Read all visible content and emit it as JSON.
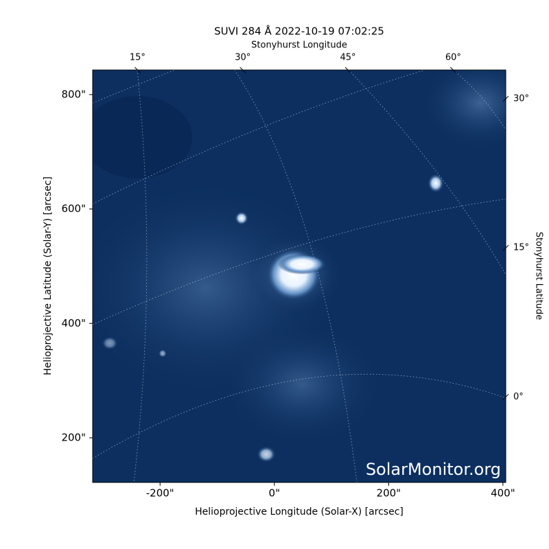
{
  "chart_data": {
    "type": "image",
    "title": "SUVI 284 Å 2022-10-19 07:02:25",
    "xlabel": "Helioprojective Longitude (Solar-X) [arcsec]",
    "ylabel": "Helioprojective Latitude (Solar-Y) [arcsec]",
    "x2label": "Stonyhurst Longitude",
    "y2label": "Stonyhurst Latitude",
    "watermark": "SolarMonitor.org",
    "xlim": [
      -318,
      405
    ],
    "ylim": [
      122,
      843
    ],
    "xticks": [
      {
        "value": -200,
        "label": "-200\""
      },
      {
        "value": 0,
        "label": "0\""
      },
      {
        "value": 200,
        "label": "200\""
      },
      {
        "value": 400,
        "label": "400\""
      }
    ],
    "yticks": [
      {
        "value": 200,
        "label": "200\""
      },
      {
        "value": 400,
        "label": "400\""
      },
      {
        "value": 600,
        "label": "600\""
      },
      {
        "value": 800,
        "label": "800\""
      }
    ],
    "x2lim": [
      8.6,
      67.5
    ],
    "x2ticks": [
      {
        "value": 15,
        "label": "15°"
      },
      {
        "value": 30,
        "label": "30°"
      },
      {
        "value": 45,
        "label": "45°"
      },
      {
        "value": 60,
        "label": "60°"
      }
    ],
    "y2lim": [
      -8.6,
      32.9
    ],
    "y2ticks": [
      {
        "value": 0,
        "label": "0°"
      },
      {
        "value": 15,
        "label": "15°"
      },
      {
        "value": 30,
        "label": "30°"
      }
    ]
  }
}
